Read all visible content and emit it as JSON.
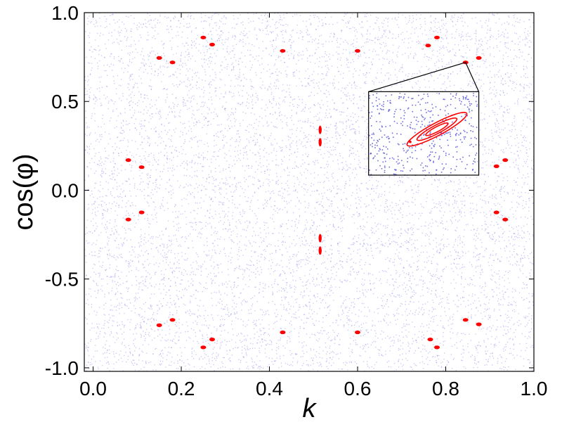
{
  "chart_data": {
    "type": "scatter",
    "title": "",
    "xlabel": "k",
    "ylabel": "cos(φ)",
    "xlim": [
      -0.02,
      1.0
    ],
    "ylim": [
      -1.02,
      1.0
    ],
    "grid": false,
    "legend": "none",
    "x_ticks": [
      {
        "value": 0.0,
        "label": "0.0"
      },
      {
        "value": 0.2,
        "label": "0.2"
      },
      {
        "value": 0.4,
        "label": "0.4"
      },
      {
        "value": 0.6,
        "label": "0.6"
      },
      {
        "value": 0.8,
        "label": "0.8"
      },
      {
        "value": 1.0,
        "label": "1.0"
      }
    ],
    "y_ticks": [
      {
        "value": 1.0,
        "label": "1.0"
      },
      {
        "value": 0.5,
        "label": "0.5"
      },
      {
        "value": 0.0,
        "label": "0.0"
      },
      {
        "value": -0.5,
        "label": "-0.5"
      },
      {
        "value": -1.0,
        "label": "-1.0"
      }
    ],
    "series": [
      {
        "color": "#7f7fe6",
        "kind": "chaotic-sea",
        "x_range": [
          -0.02,
          1.0
        ],
        "y_range": [
          -1.02,
          1.0
        ]
      },
      {
        "color": "#ff0000",
        "kind": "stable-islands",
        "points": [
          [
            0.25,
            0.86
          ],
          [
            0.27,
            0.82
          ],
          [
            0.15,
            0.745
          ],
          [
            0.18,
            0.72
          ],
          [
            0.43,
            0.785
          ],
          [
            0.6,
            0.785
          ],
          [
            0.76,
            0.815
          ],
          [
            0.78,
            0.86
          ],
          [
            0.845,
            0.72
          ],
          [
            0.875,
            0.745
          ],
          [
            0.515,
            0.34
          ],
          [
            0.515,
            0.27
          ],
          [
            0.08,
            0.17
          ],
          [
            0.11,
            0.13
          ],
          [
            0.08,
            -0.165
          ],
          [
            0.11,
            -0.125
          ],
          [
            0.915,
            0.135
          ],
          [
            0.935,
            0.17
          ],
          [
            0.915,
            -0.125
          ],
          [
            0.935,
            -0.165
          ],
          [
            0.515,
            -0.27
          ],
          [
            0.515,
            -0.34
          ],
          [
            0.15,
            -0.76
          ],
          [
            0.18,
            -0.73
          ],
          [
            0.25,
            -0.885
          ],
          [
            0.27,
            -0.84
          ],
          [
            0.43,
            -0.8
          ],
          [
            0.6,
            -0.8
          ],
          [
            0.765,
            -0.84
          ],
          [
            0.78,
            -0.885
          ],
          [
            0.845,
            -0.73
          ],
          [
            0.875,
            -0.755
          ]
        ]
      }
    ],
    "inset": {
      "source_point": [
        0.845,
        0.72
      ],
      "frame_xlim": [
        0.625,
        0.875
      ],
      "frame_ylim": [
        0.085,
        0.555
      ]
    }
  }
}
